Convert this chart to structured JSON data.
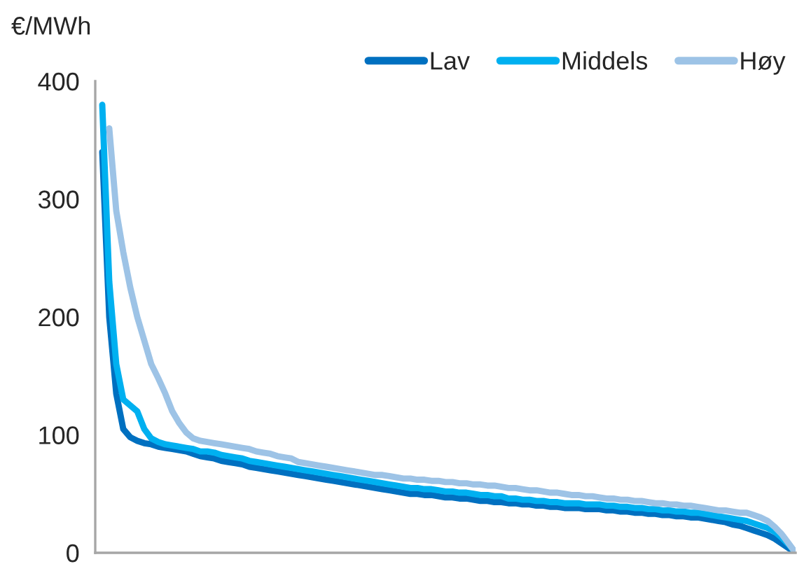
{
  "chart_data": {
    "type": "line",
    "ylabel": "€/MWh",
    "ylim": [
      0,
      400
    ],
    "yticks": [
      0,
      100,
      200,
      300,
      400
    ],
    "grid": false,
    "legend": "top right",
    "marker": "none",
    "line_style": "solid",
    "categories": [
      null,
      null,
      null,
      null,
      null,
      null,
      null,
      null,
      null,
      null,
      null,
      null,
      null,
      null,
      null,
      null,
      null,
      null,
      null,
      null,
      null,
      null,
      null,
      null,
      null,
      null,
      null,
      null,
      null,
      null,
      null,
      null,
      null,
      null,
      null,
      null,
      null,
      null,
      null,
      null,
      null,
      null,
      null,
      null,
      null,
      null,
      null,
      null,
      null,
      null,
      null,
      null,
      null,
      null,
      null,
      null,
      null,
      null,
      null,
      null,
      null,
      null,
      null,
      null,
      null,
      null,
      null,
      null,
      null,
      null,
      null,
      null,
      null,
      null,
      null,
      null,
      null,
      null,
      null,
      null,
      null,
      null,
      null,
      null,
      null,
      null,
      null,
      null,
      null,
      null,
      null,
      null,
      null,
      null,
      null,
      null,
      null,
      null,
      null,
      null,
      null
    ],
    "series": [
      {
        "name": "Lav",
        "color": "#0070c0",
        "values": [
          null,
          340,
          200,
          135,
          105,
          98,
          95,
          93,
          92,
          90,
          89,
          88,
          87,
          86,
          84,
          82,
          81,
          80,
          78,
          77,
          76,
          75,
          73,
          72,
          71,
          70,
          69,
          68,
          67,
          66,
          65,
          64,
          63,
          62,
          61,
          60,
          59,
          58,
          57,
          56,
          55,
          54,
          53,
          52,
          51,
          50,
          50,
          49,
          49,
          48,
          47,
          47,
          46,
          46,
          45,
          44,
          44,
          43,
          43,
          42,
          42,
          41,
          41,
          40,
          40,
          39,
          39,
          38,
          38,
          38,
          37,
          37,
          37,
          36,
          36,
          35,
          35,
          34,
          34,
          33,
          33,
          32,
          32,
          31,
          31,
          30,
          30,
          29,
          28,
          27,
          26,
          24,
          23,
          21,
          19,
          17,
          15,
          12,
          8,
          4,
          0
        ]
      },
      {
        "name": "Middels",
        "color": "#00b0f0",
        "values": [
          null,
          380,
          230,
          160,
          130,
          125,
          120,
          105,
          97,
          94,
          92,
          91,
          90,
          89,
          88,
          86,
          86,
          85,
          83,
          82,
          81,
          80,
          78,
          77,
          76,
          75,
          74,
          73,
          72,
          71,
          70,
          69,
          68,
          67,
          66,
          65,
          64,
          63,
          62,
          61,
          60,
          59,
          58,
          57,
          56,
          55,
          55,
          54,
          54,
          53,
          52,
          52,
          51,
          51,
          50,
          49,
          49,
          48,
          48,
          46,
          46,
          45,
          45,
          44,
          44,
          43,
          43,
          42,
          42,
          42,
          41,
          41,
          41,
          40,
          40,
          39,
          39,
          38,
          38,
          37,
          37,
          36,
          36,
          35,
          35,
          34,
          34,
          33,
          32,
          31,
          30,
          29,
          28,
          27,
          25,
          23,
          21,
          18,
          13,
          7,
          0
        ]
      },
      {
        "name": "Høy",
        "color": "#9dc3e6",
        "values": [
          null,
          null,
          360,
          290,
          255,
          225,
          200,
          180,
          160,
          148,
          135,
          120,
          110,
          102,
          97,
          95,
          94,
          93,
          92,
          91,
          90,
          89,
          88,
          86,
          85,
          84,
          82,
          81,
          80,
          77,
          76,
          75,
          74,
          73,
          72,
          71,
          70,
          69,
          68,
          67,
          66,
          66,
          65,
          64,
          63,
          63,
          62,
          62,
          61,
          61,
          60,
          60,
          59,
          59,
          58,
          58,
          57,
          57,
          56,
          55,
          55,
          54,
          53,
          53,
          52,
          51,
          51,
          50,
          49,
          49,
          48,
          48,
          47,
          46,
          46,
          45,
          45,
          44,
          44,
          43,
          42,
          42,
          41,
          41,
          40,
          40,
          39,
          38,
          37,
          36,
          36,
          35,
          34,
          34,
          32,
          30,
          27,
          22,
          16,
          8,
          0
        ]
      }
    ]
  }
}
